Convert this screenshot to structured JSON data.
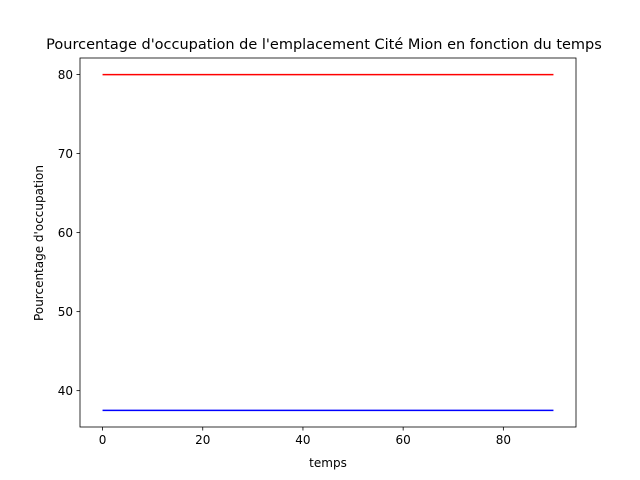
{
  "chart_data": {
    "type": "line",
    "title": "Pourcentage d'occupation de l'emplacement Cité Mion en fonction du temps",
    "xlabel": "temps",
    "ylabel": "Pourcentage d'occupation",
    "xlim": [
      -4.5,
      94.5
    ],
    "ylim": [
      35.4,
      82.1
    ],
    "xticks": [
      0,
      20,
      40,
      60,
      80
    ],
    "yticks": [
      40,
      50,
      60,
      70,
      80
    ],
    "grid": false,
    "series": [
      {
        "color": "#ff0000",
        "x": [
          0,
          90
        ],
        "y": [
          80,
          80
        ]
      },
      {
        "color": "#0000ff",
        "x": [
          0,
          90
        ],
        "y": [
          37.5,
          37.5
        ]
      }
    ]
  }
}
